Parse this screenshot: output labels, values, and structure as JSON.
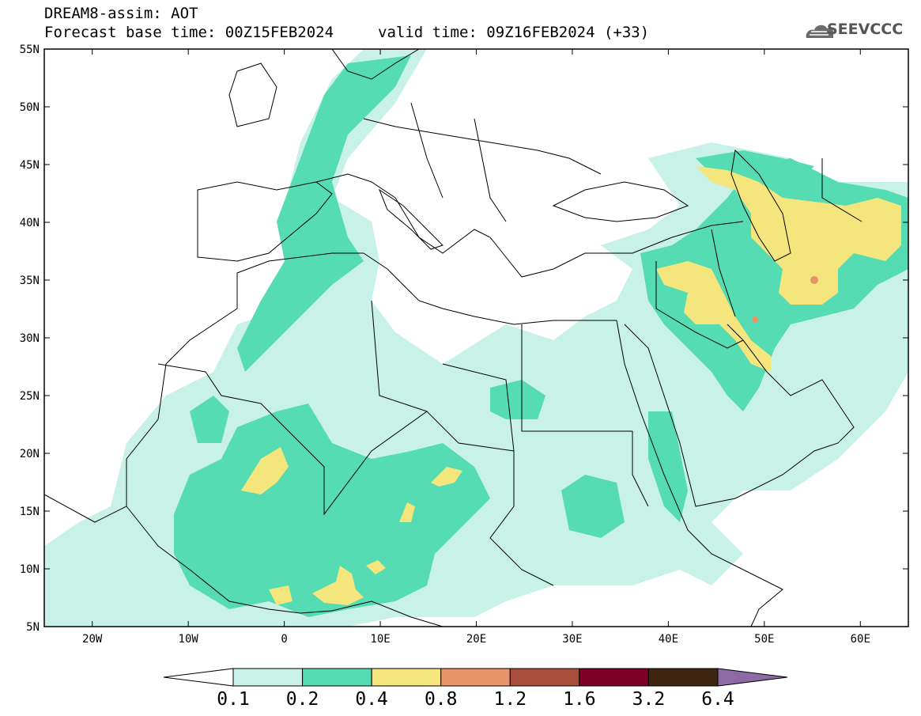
{
  "title": {
    "line1": "DREAM8-assim: AOT",
    "line2": "Forecast base time: 00Z15FEB2024",
    "valid": "valid time: 09Z16FEB2024 (+33)"
  },
  "logo": {
    "text": "SEEVCCC"
  },
  "map": {
    "lon_range": [
      -25,
      65
    ],
    "lat_range": [
      5,
      55
    ],
    "x_ticks": [
      "20W",
      "10W",
      "0",
      "10E",
      "20E",
      "30E",
      "40E",
      "50E",
      "60E"
    ],
    "y_ticks": [
      "5N",
      "10N",
      "15N",
      "20N",
      "25N",
      "30N",
      "35N",
      "40N",
      "45N",
      "50N",
      "55N"
    ]
  },
  "colorbar": {
    "labels": [
      "0.1",
      "0.2",
      "0.4",
      "0.8",
      "1.2",
      "1.6",
      "3.2",
      "6.4"
    ],
    "colors": [
      "#ffffff",
      "#c8f1e7",
      "#55dcb2",
      "#f4e57c",
      "#e9946a",
      "#a84d3c",
      "#7d0027",
      "#3f2612",
      "#8e6aa5"
    ]
  },
  "fill_colors": {
    "low": "#c8f1e7",
    "mid": "#55dcb2",
    "high": "#f4e57c",
    "peak": "#e9946a"
  }
}
